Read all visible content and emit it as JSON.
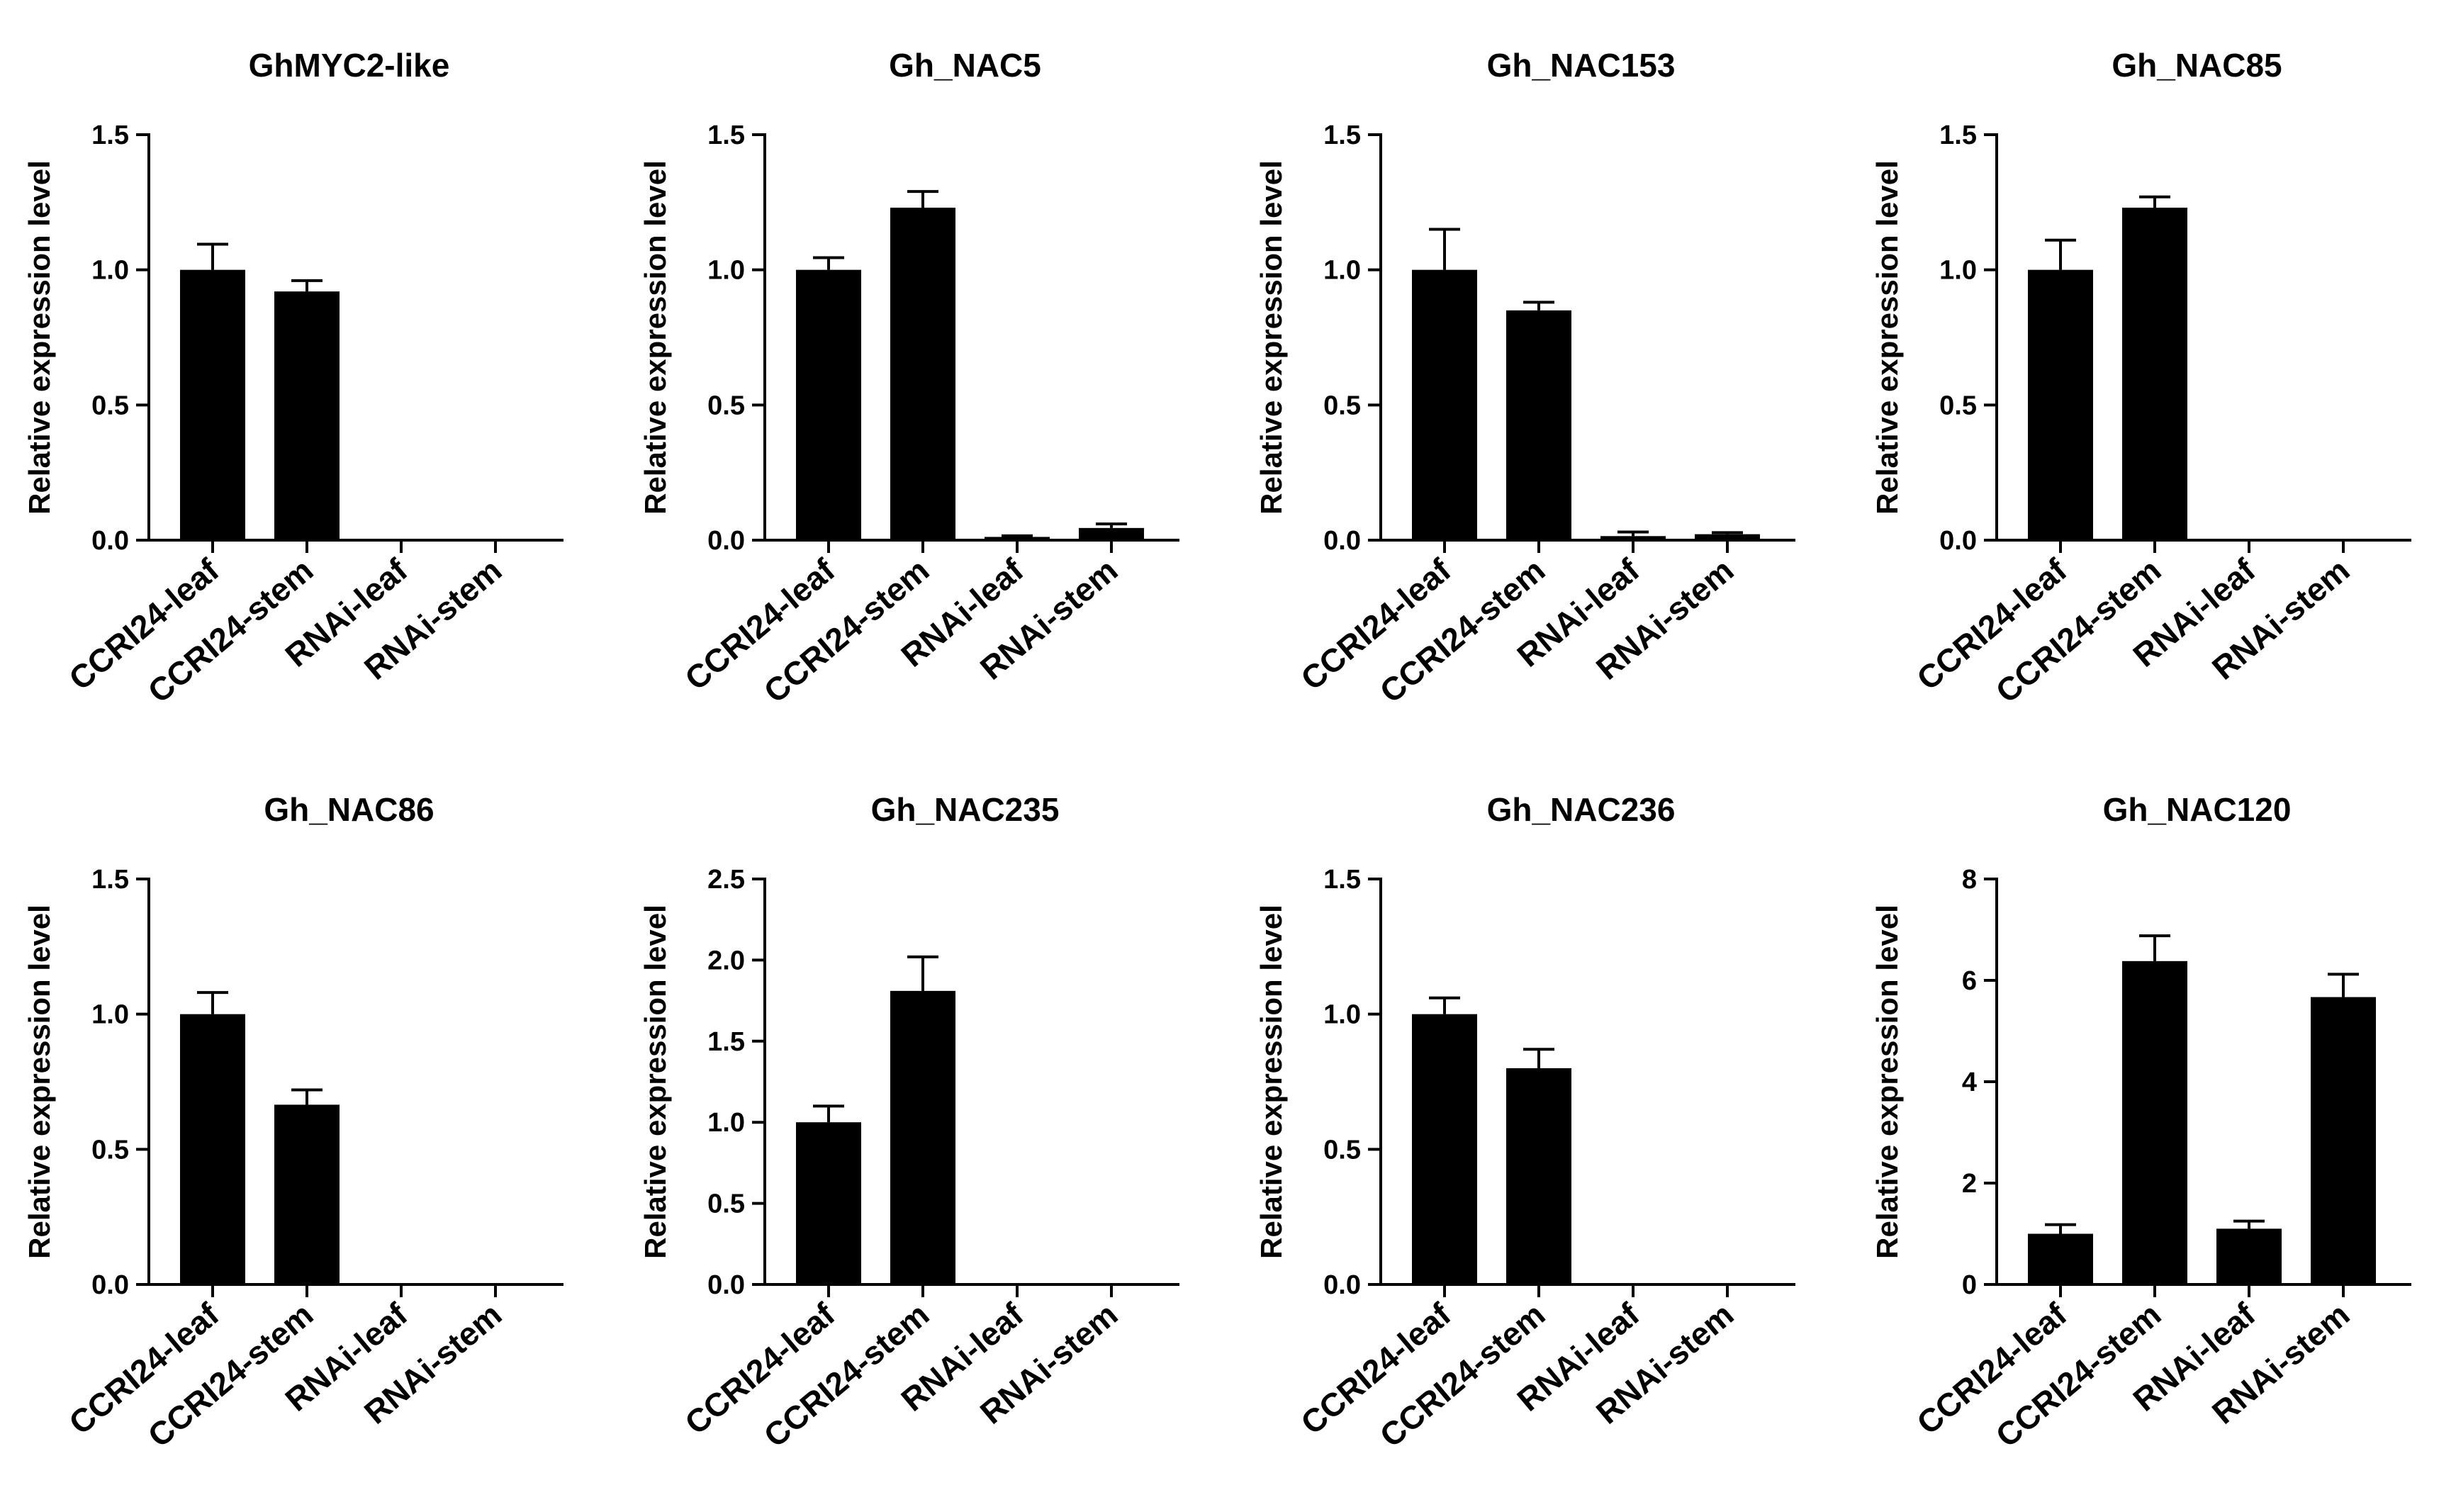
{
  "chart_data": [
    {
      "type": "bar",
      "title": "GhMYC2-like",
      "ylabel": "Relative expression level",
      "categories": [
        "CCRI24-leaf",
        "CCRI24-stem",
        "RNAi-leaf",
        "RNAi-stem"
      ],
      "values": [
        1.0,
        0.92,
        0.0,
        0.0
      ],
      "errors": [
        0.095,
        0.04,
        0.0,
        0.0
      ],
      "ylim": [
        0,
        1.5
      ],
      "yticks": [
        0.0,
        0.5,
        1.0,
        1.5
      ],
      "ytick_labels": [
        "0.0",
        "0.5",
        "1.0",
        "1.5"
      ]
    },
    {
      "type": "bar",
      "title": "Gh_NAC5",
      "ylabel": "Relative expression level",
      "categories": [
        "CCRI24-leaf",
        "CCRI24-stem",
        "RNAi-leaf",
        "RNAi-stem"
      ],
      "values": [
        1.0,
        1.23,
        0.012,
        0.045
      ],
      "errors": [
        0.045,
        0.06,
        0.004,
        0.015
      ],
      "ylim": [
        0,
        1.5
      ],
      "yticks": [
        0.0,
        0.5,
        1.0,
        1.5
      ],
      "ytick_labels": [
        "0.0",
        "0.5",
        "1.0",
        "1.5"
      ]
    },
    {
      "type": "bar",
      "title": "Gh_NAC153",
      "ylabel": "Relative expression level",
      "categories": [
        "CCRI24-leaf",
        "CCRI24-stem",
        "RNAi-leaf",
        "RNAi-stem"
      ],
      "values": [
        1.0,
        0.85,
        0.015,
        0.022
      ],
      "errors": [
        0.15,
        0.03,
        0.015,
        0.006
      ],
      "ylim": [
        0,
        1.5
      ],
      "yticks": [
        0.0,
        0.5,
        1.0,
        1.5
      ],
      "ytick_labels": [
        "0.0",
        "0.5",
        "1.0",
        "1.5"
      ]
    },
    {
      "type": "bar",
      "title": "Gh_NAC85",
      "ylabel": "Relative expression level",
      "categories": [
        "CCRI24-leaf",
        "CCRI24-stem",
        "RNAi-leaf",
        "RNAi-stem"
      ],
      "values": [
        1.0,
        1.23,
        0.0,
        0.0
      ],
      "errors": [
        0.11,
        0.04,
        0.0,
        0.0
      ],
      "ylim": [
        0,
        1.5
      ],
      "yticks": [
        0.0,
        0.5,
        1.0,
        1.5
      ],
      "ytick_labels": [
        "0.0",
        "0.5",
        "1.0",
        "1.5"
      ]
    },
    {
      "type": "bar",
      "title": "Gh_NAC86",
      "ylabel": "Relative expression level",
      "categories": [
        "CCRI24-leaf",
        "CCRI24-stem",
        "RNAi-leaf",
        "RNAi-stem"
      ],
      "values": [
        1.0,
        0.665,
        0.003,
        0.0
      ],
      "errors": [
        0.08,
        0.055,
        0.0,
        0.0
      ],
      "ylim": [
        0,
        1.5
      ],
      "yticks": [
        0.0,
        0.5,
        1.0,
        1.5
      ],
      "ytick_labels": [
        "0.0",
        "0.5",
        "1.0",
        "1.5"
      ]
    },
    {
      "type": "bar",
      "title": "Gh_NAC235",
      "ylabel": "Relative expression level",
      "categories": [
        "CCRI24-leaf",
        "CCRI24-stem",
        "RNAi-leaf",
        "RNAi-stem"
      ],
      "values": [
        1.0,
        1.81,
        0.0,
        0.0
      ],
      "errors": [
        0.1,
        0.21,
        0.0,
        0.0
      ],
      "ylim": [
        0,
        2.5
      ],
      "yticks": [
        0.0,
        0.5,
        1.0,
        1.5,
        2.0,
        2.5
      ],
      "ytick_labels": [
        "0.0",
        "0.5",
        "1.0",
        "1.5",
        "2.0",
        "2.5"
      ]
    },
    {
      "type": "bar",
      "title": "Gh_NAC236",
      "ylabel": "Relative expression level",
      "categories": [
        "CCRI24-leaf",
        "CCRI24-stem",
        "RNAi-leaf",
        "RNAi-stem"
      ],
      "values": [
        1.0,
        0.8,
        0.0,
        0.0
      ],
      "errors": [
        0.06,
        0.07,
        0.0,
        0.0
      ],
      "ylim": [
        0,
        1.5
      ],
      "yticks": [
        0.0,
        0.5,
        1.0,
        1.5
      ],
      "ytick_labels": [
        "0.0",
        "0.5",
        "1.0",
        "1.5"
      ]
    },
    {
      "type": "bar",
      "title": "Gh_NAC120",
      "ylabel": "Relative expression level",
      "categories": [
        "CCRI24-leaf",
        "CCRI24-stem",
        "RNAi-leaf",
        "RNAi-stem"
      ],
      "values": [
        1.0,
        6.38,
        1.1,
        5.67
      ],
      "errors": [
        0.18,
        0.5,
        0.15,
        0.45
      ],
      "ylim": [
        0,
        8
      ],
      "yticks": [
        0,
        2,
        4,
        6,
        8
      ],
      "ytick_labels": [
        "0",
        "2",
        "4",
        "6",
        "8"
      ]
    }
  ],
  "colors": {
    "bar": "#000000",
    "axis": "#000000",
    "background": "#ffffff"
  }
}
